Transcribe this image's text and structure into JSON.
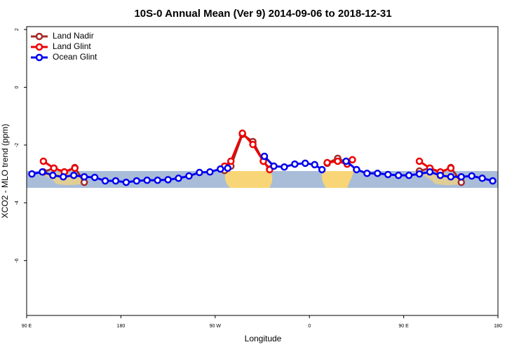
{
  "chart_data": {
    "type": "line",
    "title": "10S-0 Annual Mean (Ver 9)   2014-09-06 to 2018-12-31",
    "x_label": "Longitude",
    "y_label": "XCO2 - MLO trend (ppm)",
    "xlim": [
      90,
      540
    ],
    "ylim": [
      -7.9,
      2.1
    ],
    "xticks": [
      {
        "value": 90,
        "label": "90 E"
      },
      {
        "value": 180,
        "label": "180"
      },
      {
        "value": 270,
        "label": "90 W"
      },
      {
        "value": 360,
        "label": "0"
      },
      {
        "value": 450,
        "label": "90 E"
      },
      {
        "value": 540,
        "label": "180"
      }
    ],
    "yticks": [
      2,
      0,
      -2,
      -4,
      -6
    ],
    "legend": "top-left",
    "series": [
      {
        "name": "Land Nadir",
        "color": "#a52a2a",
        "x": [
          106,
          116,
          126,
          136,
          145,
          null,
          279,
          285,
          296,
          306,
          316,
          322,
          null,
          377,
          387,
          396,
          null,
          465,
          475,
          485,
          495,
          505
        ],
        "values": [
          -2.93,
          -2.8,
          -2.93,
          -2.78,
          -3.29,
          null,
          -2.88,
          -2.73,
          -1.63,
          -1.88,
          -2.56,
          -2.83,
          null,
          -2.63,
          -2.46,
          -2.61,
          null,
          -2.9,
          -2.8,
          -2.95,
          -2.78,
          -3.29
        ]
      },
      {
        "name": "Land Glint",
        "color": "#ee0000",
        "x": [
          106,
          116,
          126,
          136,
          null,
          279,
          285,
          296,
          306,
          316,
          322,
          null,
          377,
          387,
          396,
          401,
          null,
          465,
          475,
          485,
          495
        ],
        "values": [
          -2.56,
          -2.8,
          -2.93,
          -2.8,
          null,
          -2.73,
          -2.56,
          -1.59,
          -1.98,
          -2.56,
          -2.85,
          null,
          -2.61,
          -2.56,
          -2.66,
          -2.51,
          null,
          -2.56,
          -2.8,
          -2.93,
          -2.8
        ]
      },
      {
        "name": "Ocean Glint",
        "color": "#0000ee",
        "x": [
          95,
          105,
          115,
          125,
          135,
          145,
          155,
          165,
          175,
          185,
          195,
          205,
          215,
          225,
          235,
          245,
          255,
          265,
          275,
          282,
          null,
          317,
          326,
          336,
          346,
          356,
          365,
          372,
          null,
          395,
          405,
          415,
          425,
          435,
          445,
          455,
          465,
          475,
          485,
          495,
          505,
          515,
          525,
          535
        ],
        "values": [
          -3.0,
          -2.93,
          -3.05,
          -3.1,
          -3.05,
          -3.1,
          -3.12,
          -3.24,
          -3.24,
          -3.29,
          -3.24,
          -3.22,
          -3.22,
          -3.2,
          -3.15,
          -3.07,
          -2.95,
          -2.93,
          -2.83,
          -2.8,
          null,
          -2.39,
          -2.73,
          -2.76,
          -2.66,
          -2.63,
          -2.68,
          -2.85,
          null,
          -2.56,
          -2.85,
          -2.98,
          -2.98,
          -3.02,
          -3.05,
          -3.05,
          -3.0,
          -2.93,
          -3.05,
          -3.1,
          -3.1,
          -3.07,
          -3.15,
          -3.24
        ]
      }
    ]
  }
}
